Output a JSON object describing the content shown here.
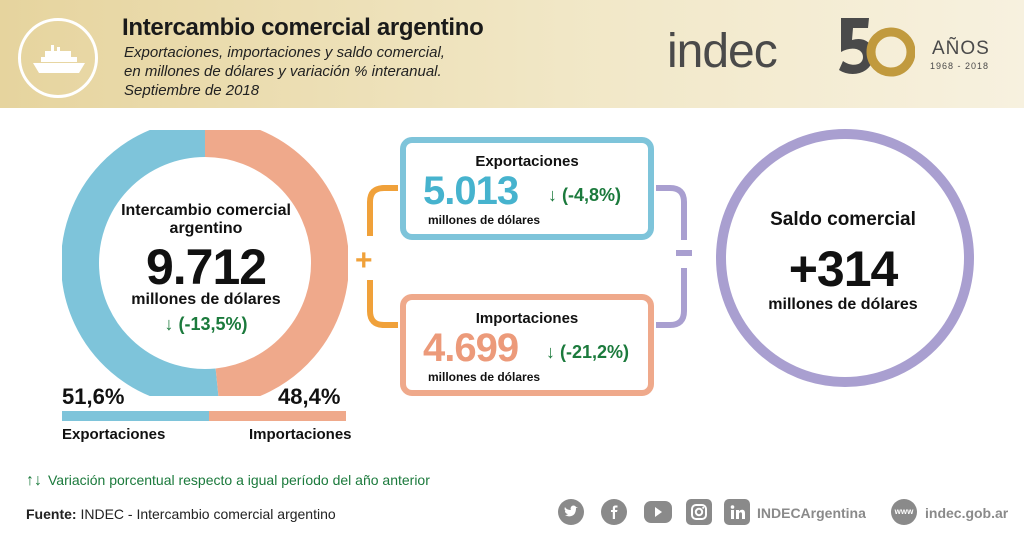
{
  "header": {
    "title": "Intercambio comercial argentino",
    "subtitle_1": "Exportaciones, importaciones y saldo comercial,",
    "subtitle_2": "en millones de dólares y variación % interanual.",
    "subtitle_3": "Septiembre de 2018",
    "icon": "ship-icon"
  },
  "brand": {
    "name": "indec",
    "anniversary_number": "50",
    "anniversary_word": "AÑOS",
    "anniversary_years": "1968  -  2018",
    "colors": {
      "gold": "#c19a3e",
      "gray": "#4a4a4a"
    }
  },
  "total": {
    "label_1": "Intercambio comercial",
    "label_2": "argentino",
    "value": "9.712",
    "unit": "millones de dólares",
    "variation": "↓ (-13,5%)",
    "share_exp_fraction": 0.516,
    "share_exp": "51,6%",
    "share_imp": "48,4%",
    "label_exp": "Exportaciones",
    "label_imp": "Importaciones"
  },
  "exports": {
    "title": "Exportaciones",
    "value": "5.013",
    "unit": "millones de dólares",
    "variation": "↓ (-4,8%)",
    "color": "#7ec4da"
  },
  "imports": {
    "title": "Importaciones",
    "value": "4.699",
    "unit": "millones de dólares",
    "variation": "↓ (-21,2%)",
    "color": "#efa98b"
  },
  "balance": {
    "title": "Saldo comercial",
    "value": "+314",
    "unit": "millones de dólares",
    "color": "#a99fd0"
  },
  "operators": {
    "plus": "+"
  },
  "footer": {
    "legend_arrows": "↑↓",
    "legend_text": "Variación porcentual respecto a igual período del año anterior",
    "source_label": "Fuente:",
    "source_text": "INDEC - Intercambio comercial argentino",
    "social_handle": "INDECArgentina",
    "www": "www",
    "website": "indec.gob.ar",
    "social_icons": [
      "twitter-icon",
      "facebook-icon",
      "youtube-icon",
      "instagram-icon",
      "linkedin-icon"
    ]
  }
}
